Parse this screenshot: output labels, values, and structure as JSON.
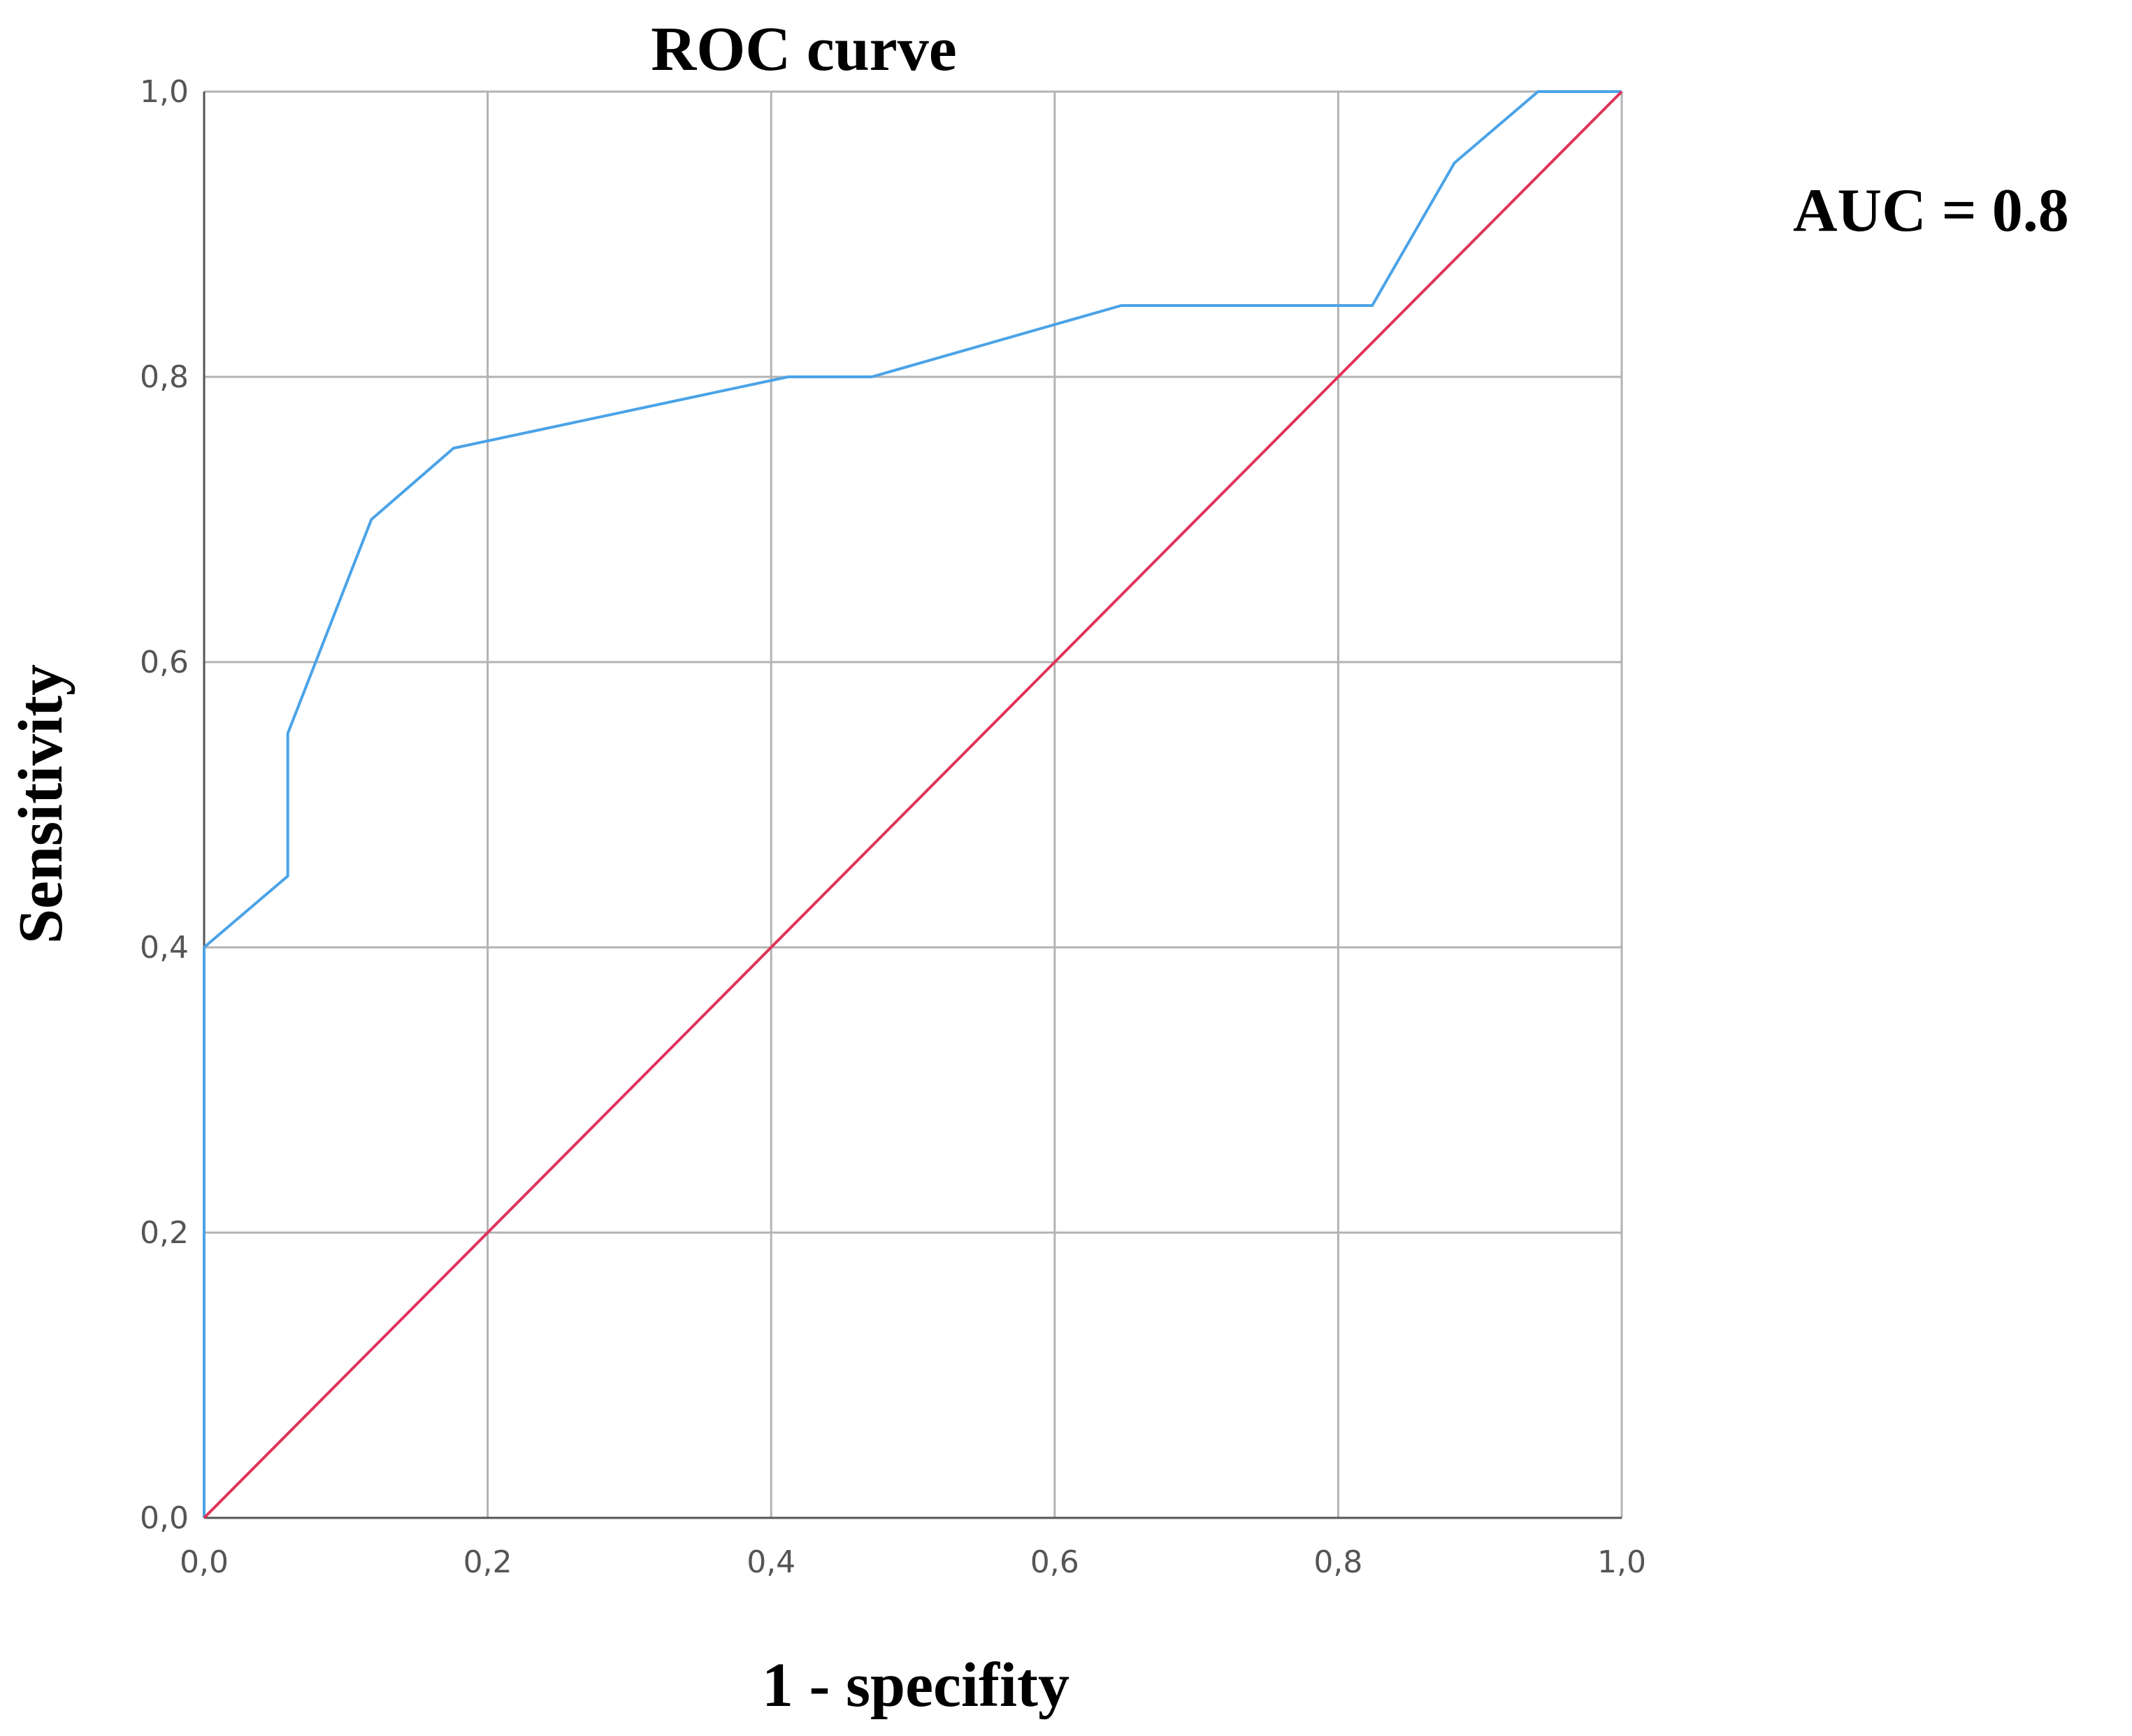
{
  "chart_data": {
    "type": "line",
    "title": "ROC curve",
    "xlabel": "1 - specifity",
    "ylabel": "Sensitivity",
    "xlim": [
      0,
      1
    ],
    "ylim": [
      0,
      1
    ],
    "x_ticks": [
      "0,0",
      "0,2",
      "0,4",
      "0,6",
      "0,8",
      "1,0"
    ],
    "y_ticks": [
      "0,0",
      "0,2",
      "0,4",
      "0,6",
      "0,8",
      "1,0"
    ],
    "grid": true,
    "annotation": "AUC = 0.8",
    "series": [
      {
        "color": "#4aa3e8",
        "points": [
          [
            0.0,
            0.0
          ],
          [
            0.0,
            0.4
          ],
          [
            0.059,
            0.45
          ],
          [
            0.059,
            0.55
          ],
          [
            0.118,
            0.7
          ],
          [
            0.176,
            0.75
          ],
          [
            0.412,
            0.8
          ],
          [
            0.471,
            0.8
          ],
          [
            0.647,
            0.85
          ],
          [
            0.824,
            0.85
          ],
          [
            0.882,
            0.95
          ],
          [
            0.941,
            1.0
          ],
          [
            1.0,
            1.0
          ]
        ]
      },
      {
        "color": "#e0335a",
        "points": [
          [
            0.0,
            0.0
          ],
          [
            1.0,
            1.0
          ]
        ]
      }
    ]
  }
}
